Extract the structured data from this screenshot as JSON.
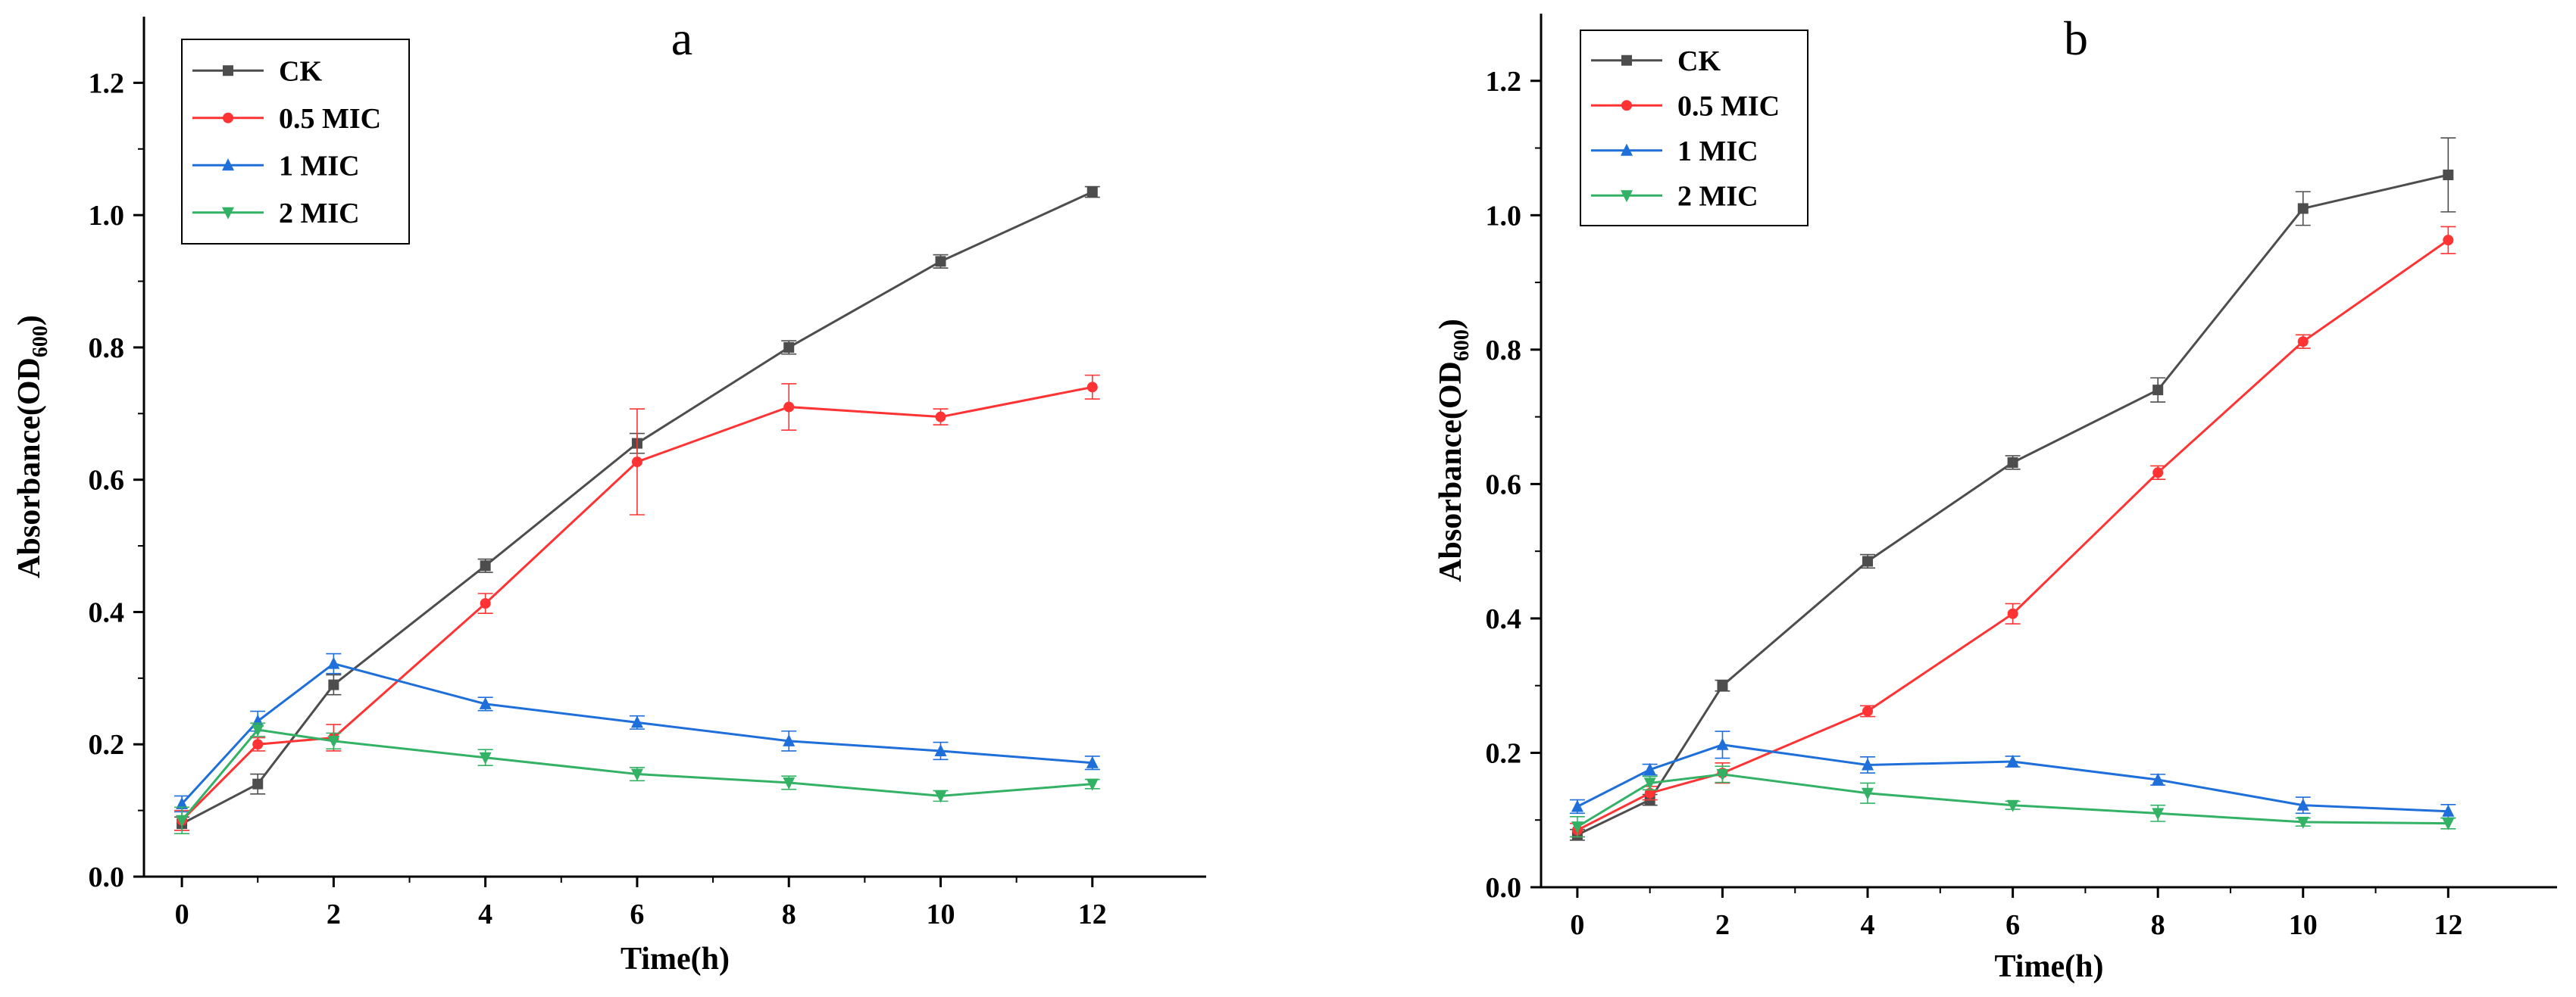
{
  "chart_data": [
    {
      "type": "line",
      "panel_label": "a",
      "xlabel": "Time(h)",
      "ylabel_main": "Absorbance(OD",
      "ylabel_sub": "600",
      "ylabel_close": ")",
      "x": [
        0,
        1,
        2,
        4,
        6,
        8,
        10,
        12
      ],
      "xticks": [
        0,
        2,
        4,
        6,
        8,
        10,
        12
      ],
      "yticks": [
        0.0,
        0.2,
        0.4,
        0.6,
        0.8,
        1.0,
        1.2
      ],
      "xlim": [
        -0.5,
        13.5
      ],
      "ylim": [
        0,
        1.3
      ],
      "legend_position": "top-left",
      "grid": false,
      "series": [
        {
          "name": "CK",
          "color": "#4d4d4d",
          "marker": "square",
          "values": [
            0.08,
            0.14,
            0.29,
            0.47,
            0.655,
            0.8,
            0.93,
            1.035
          ],
          "errors": [
            0.01,
            0.015,
            0.015,
            0.01,
            0.015,
            0.01,
            0.01,
            0.008
          ]
        },
        {
          "name": "0.5 MIC",
          "color": "#ff3333",
          "marker": "circle",
          "values": [
            0.085,
            0.2,
            0.21,
            0.413,
            0.627,
            0.71,
            0.695,
            0.74
          ],
          "errors": [
            0.015,
            0.01,
            0.02,
            0.015,
            0.08,
            0.035,
            0.012,
            0.018
          ]
        },
        {
          "name": "1 MIC",
          "color": "#1e6fd9",
          "marker": "triangle-up",
          "values": [
            0.11,
            0.235,
            0.322,
            0.261,
            0.233,
            0.205,
            0.19,
            0.172
          ],
          "errors": [
            0.012,
            0.015,
            0.015,
            0.01,
            0.01,
            0.015,
            0.013,
            0.01
          ]
        },
        {
          "name": "2 MIC",
          "color": "#33b266",
          "marker": "triangle-down",
          "values": [
            0.085,
            0.222,
            0.205,
            0.18,
            0.155,
            0.142,
            0.122,
            0.14
          ],
          "errors": [
            0.02,
            0.01,
            0.012,
            0.012,
            0.01,
            0.01,
            0.008,
            0.007
          ]
        }
      ]
    },
    {
      "type": "line",
      "panel_label": "b",
      "xlabel": "Time(h)",
      "ylabel_main": "Absorbance(OD",
      "ylabel_sub": "600",
      "ylabel_close": ")",
      "x": [
        0,
        1,
        2,
        4,
        6,
        8,
        10,
        12
      ],
      "xticks": [
        0,
        2,
        4,
        6,
        8,
        10,
        12
      ],
      "yticks": [
        0.0,
        0.2,
        0.4,
        0.6,
        0.8,
        1.0,
        1.2
      ],
      "xlim": [
        -0.5,
        13.5
      ],
      "ylim": [
        0,
        1.3
      ],
      "legend_position": "top-left",
      "grid": false,
      "series": [
        {
          "name": "CK",
          "color": "#4d4d4d",
          "marker": "square",
          "values": [
            0.078,
            0.13,
            0.3,
            0.485,
            0.632,
            0.74,
            1.01,
            1.06
          ],
          "errors": [
            0.008,
            0.008,
            0.008,
            0.01,
            0.01,
            0.018,
            0.025,
            0.055
          ]
        },
        {
          "name": "0.5 MIC",
          "color": "#ff3333",
          "marker": "circle",
          "values": [
            0.085,
            0.14,
            0.17,
            0.262,
            0.407,
            0.617,
            0.812,
            0.963
          ],
          "errors": [
            0.01,
            0.01,
            0.015,
            0.008,
            0.015,
            0.01,
            0.01,
            0.02
          ]
        },
        {
          "name": "1 MIC",
          "color": "#1e6fd9",
          "marker": "triangle-up",
          "values": [
            0.12,
            0.175,
            0.212,
            0.182,
            0.187,
            0.16,
            0.122,
            0.113
          ],
          "errors": [
            0.01,
            0.008,
            0.02,
            0.012,
            0.008,
            0.008,
            0.012,
            0.01
          ]
        },
        {
          "name": "2 MIC",
          "color": "#33b266",
          "marker": "triangle-down",
          "values": [
            0.09,
            0.155,
            0.168,
            0.14,
            0.122,
            0.11,
            0.097,
            0.095
          ],
          "errors": [
            0.015,
            0.01,
            0.012,
            0.015,
            0.006,
            0.012,
            0.006,
            0.008
          ]
        }
      ]
    }
  ]
}
